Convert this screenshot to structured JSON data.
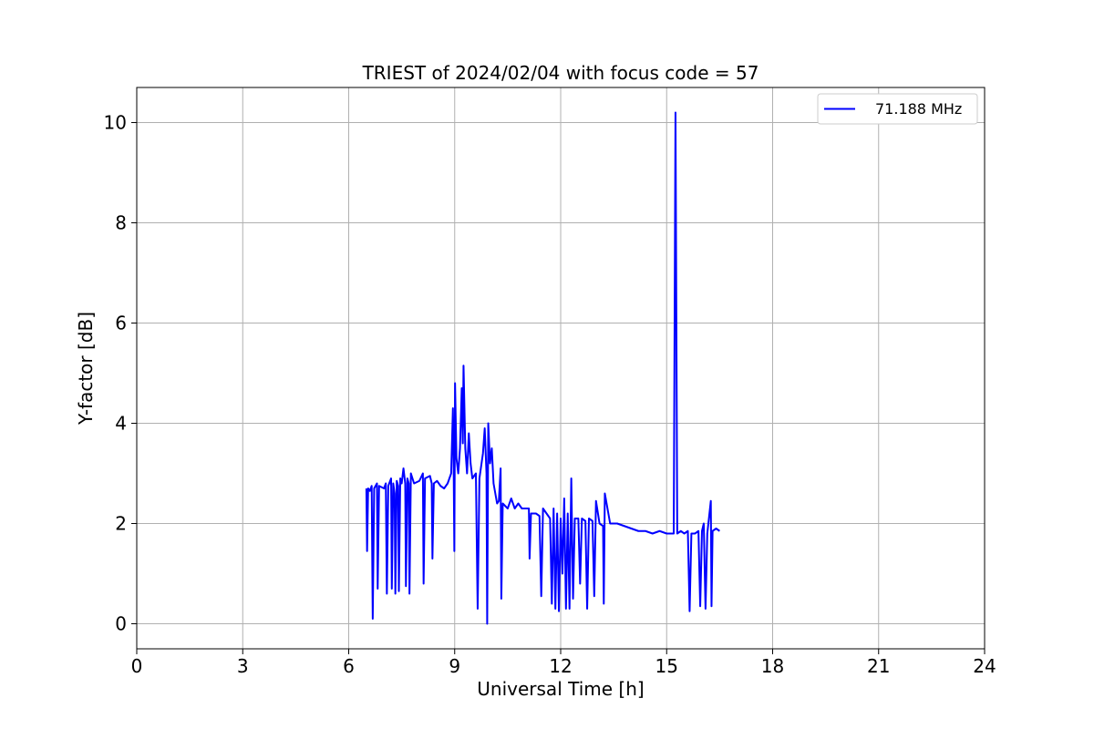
{
  "chart_data": {
    "type": "line",
    "title": "TRIEST of 2024/02/04 with focus code = 57",
    "xlabel": "Universal Time [h]",
    "ylabel": "Y-factor [dB]",
    "xlim": [
      0,
      24
    ],
    "ylim": [
      -0.5,
      10.7
    ],
    "xticks": [
      0,
      3,
      6,
      9,
      12,
      15,
      18,
      21,
      24
    ],
    "yticks": [
      0,
      2,
      4,
      6,
      8,
      10
    ],
    "xtick_labels": [
      "0",
      "3",
      "6",
      "9",
      "12",
      "15",
      "18",
      "21",
      "24"
    ],
    "ytick_labels": [
      "0",
      "2",
      "4",
      "6",
      "8",
      "10"
    ],
    "grid": true,
    "legend_position": "top-right",
    "series": [
      {
        "name": "71.188 MHz",
        "color": "#0000ff",
        "points": [
          [
            6.5,
            2.7
          ],
          [
            6.52,
            1.45
          ],
          [
            6.55,
            2.7
          ],
          [
            6.6,
            2.65
          ],
          [
            6.65,
            2.75
          ],
          [
            6.68,
            0.1
          ],
          [
            6.72,
            2.7
          ],
          [
            6.8,
            2.8
          ],
          [
            6.82,
            0.7
          ],
          [
            6.86,
            2.75
          ],
          [
            7.0,
            2.7
          ],
          [
            7.05,
            2.8
          ],
          [
            7.08,
            0.6
          ],
          [
            7.12,
            2.75
          ],
          [
            7.2,
            2.9
          ],
          [
            7.22,
            0.7
          ],
          [
            7.26,
            2.8
          ],
          [
            7.3,
            2.6
          ],
          [
            7.32,
            0.6
          ],
          [
            7.36,
            2.85
          ],
          [
            7.4,
            2.75
          ],
          [
            7.42,
            0.65
          ],
          [
            7.46,
            2.9
          ],
          [
            7.5,
            2.8
          ],
          [
            7.55,
            3.1
          ],
          [
            7.6,
            2.8
          ],
          [
            7.62,
            0.75
          ],
          [
            7.66,
            2.9
          ],
          [
            7.7,
            2.8
          ],
          [
            7.72,
            0.6
          ],
          [
            7.76,
            3.0
          ],
          [
            7.85,
            2.8
          ],
          [
            8.0,
            2.85
          ],
          [
            8.1,
            3.0
          ],
          [
            8.12,
            0.8
          ],
          [
            8.16,
            2.9
          ],
          [
            8.3,
            2.95
          ],
          [
            8.35,
            2.8
          ],
          [
            8.37,
            1.3
          ],
          [
            8.41,
            2.8
          ],
          [
            8.5,
            2.85
          ],
          [
            8.6,
            2.75
          ],
          [
            8.7,
            2.7
          ],
          [
            8.8,
            2.8
          ],
          [
            8.9,
            3.0
          ],
          [
            8.95,
            4.3
          ],
          [
            8.97,
            3.2
          ],
          [
            8.99,
            1.45
          ],
          [
            9.01,
            4.8
          ],
          [
            9.05,
            3.3
          ],
          [
            9.1,
            3.0
          ],
          [
            9.15,
            3.5
          ],
          [
            9.2,
            4.7
          ],
          [
            9.23,
            3.6
          ],
          [
            9.25,
            5.15
          ],
          [
            9.3,
            3.5
          ],
          [
            9.35,
            3.0
          ],
          [
            9.4,
            3.8
          ],
          [
            9.45,
            3.2
          ],
          [
            9.5,
            2.9
          ],
          [
            9.6,
            3.0
          ],
          [
            9.65,
            0.3
          ],
          [
            9.7,
            2.9
          ],
          [
            9.8,
            3.4
          ],
          [
            9.85,
            3.9
          ],
          [
            9.9,
            3.0
          ],
          [
            9.92,
            0.0
          ],
          [
            9.95,
            4.0
          ],
          [
            10.0,
            3.2
          ],
          [
            10.05,
            3.5
          ],
          [
            10.1,
            2.8
          ],
          [
            10.15,
            2.6
          ],
          [
            10.2,
            2.4
          ],
          [
            10.25,
            2.45
          ],
          [
            10.3,
            3.1
          ],
          [
            10.32,
            0.5
          ],
          [
            10.36,
            2.4
          ],
          [
            10.5,
            2.3
          ],
          [
            10.6,
            2.5
          ],
          [
            10.7,
            2.3
          ],
          [
            10.8,
            2.4
          ],
          [
            10.9,
            2.3
          ],
          [
            11.1,
            2.3
          ],
          [
            11.12,
            1.3
          ],
          [
            11.16,
            2.2
          ],
          [
            11.3,
            2.2
          ],
          [
            11.4,
            2.15
          ],
          [
            11.45,
            0.55
          ],
          [
            11.5,
            2.3
          ],
          [
            11.6,
            2.2
          ],
          [
            11.7,
            2.1
          ],
          [
            11.75,
            0.4
          ],
          [
            11.8,
            2.3
          ],
          [
            11.85,
            0.3
          ],
          [
            11.9,
            2.2
          ],
          [
            11.95,
            0.25
          ],
          [
            12.0,
            2.1
          ],
          [
            12.05,
            1.0
          ],
          [
            12.1,
            2.5
          ],
          [
            12.15,
            0.3
          ],
          [
            12.2,
            2.2
          ],
          [
            12.25,
            0.3
          ],
          [
            12.3,
            2.9
          ],
          [
            12.35,
            0.5
          ],
          [
            12.4,
            2.1
          ],
          [
            12.5,
            2.1
          ],
          [
            12.55,
            0.8
          ],
          [
            12.6,
            2.1
          ],
          [
            12.7,
            2.05
          ],
          [
            12.75,
            0.3
          ],
          [
            12.8,
            2.1
          ],
          [
            12.9,
            2.05
          ],
          [
            12.95,
            0.55
          ],
          [
            13.0,
            2.45
          ],
          [
            13.1,
            2.0
          ],
          [
            13.2,
            1.95
          ],
          [
            13.22,
            0.4
          ],
          [
            13.25,
            2.6
          ],
          [
            13.4,
            2.0
          ],
          [
            13.6,
            2.0
          ],
          [
            13.8,
            1.95
          ],
          [
            14.0,
            1.9
          ],
          [
            14.2,
            1.85
          ],
          [
            14.4,
            1.85
          ],
          [
            14.6,
            1.8
          ],
          [
            14.8,
            1.85
          ],
          [
            15.0,
            1.8
          ],
          [
            15.2,
            1.8
          ],
          [
            15.25,
            10.2
          ],
          [
            15.3,
            1.8
          ],
          [
            15.4,
            1.85
          ],
          [
            15.5,
            1.8
          ],
          [
            15.6,
            1.85
          ],
          [
            15.65,
            0.25
          ],
          [
            15.7,
            1.8
          ],
          [
            15.8,
            1.8
          ],
          [
            15.9,
            1.85
          ],
          [
            15.95,
            0.35
          ],
          [
            16.0,
            1.85
          ],
          [
            16.05,
            2.0
          ],
          [
            16.1,
            0.3
          ],
          [
            16.15,
            1.8
          ],
          [
            16.25,
            2.45
          ],
          [
            16.27,
            0.35
          ],
          [
            16.3,
            1.85
          ],
          [
            16.4,
            1.9
          ],
          [
            16.5,
            1.85
          ]
        ]
      }
    ]
  }
}
